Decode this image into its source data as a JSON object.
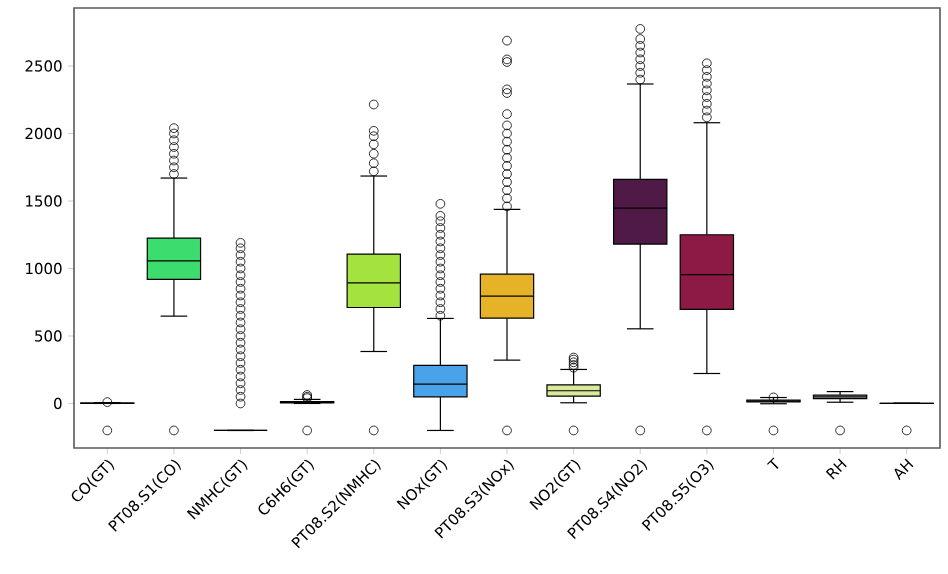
{
  "chart_data": {
    "type": "box",
    "categories": [
      "CO(GT)",
      "PT08.S1(CO)",
      "NMHC(GT)",
      "C6H6(GT)",
      "PT08.S2(NMHC)",
      "NOx(GT)",
      "PT08.S3(NOx)",
      "NO2(GT)",
      "PT08.S4(NO2)",
      "PT08.S5(O3)",
      "T",
      "RH",
      "AH"
    ],
    "colors": [
      "#9a9a9a",
      "#3ddc6e",
      "#666666",
      "#8a8a8a",
      "#a3e23f",
      "#4aa3e8",
      "#e5b228",
      "#d9ea9c",
      "#4f1a45",
      "#8c1a45",
      "#b0b0b0",
      "#c8c8c8",
      "#a0a0a0"
    ],
    "boxes": [
      {
        "low": 0,
        "q1": 1,
        "median": 2,
        "q3": 3,
        "high": 6,
        "outliers": [
          -200,
          10
        ]
      },
      {
        "low": 647,
        "q1": 919,
        "median": 1057,
        "q3": 1225,
        "high": 1670,
        "outliers": [
          -200,
          1700,
          1750,
          1800,
          1850,
          1900,
          1950,
          2000,
          2040
        ]
      },
      {
        "low": -200,
        "q1": -200,
        "median": -200,
        "q3": -200,
        "high": -200,
        "outliers": [
          0,
          50,
          100,
          150,
          200,
          250,
          300,
          350,
          400,
          450,
          500,
          550,
          600,
          650,
          700,
          750,
          800,
          850,
          900,
          950,
          1000,
          1050,
          1100,
          1150,
          1190
        ]
      },
      {
        "low": 0,
        "q1": 4,
        "median": 8,
        "q3": 14,
        "high": 30,
        "outliers": [
          -200,
          40,
          50,
          63
        ]
      },
      {
        "low": 385,
        "q1": 711,
        "median": 894,
        "q3": 1107,
        "high": 1685,
        "outliers": [
          -200,
          1720,
          1780,
          1850,
          1920,
          1980,
          2020,
          2215
        ]
      },
      {
        "low": -200,
        "q1": 49,
        "median": 143,
        "q3": 282,
        "high": 630,
        "outliers": [
          650,
          700,
          750,
          800,
          850,
          900,
          950,
          1000,
          1050,
          1100,
          1150,
          1200,
          1250,
          1300,
          1350,
          1390,
          1479
        ]
      },
      {
        "low": 321,
        "q1": 632,
        "median": 795,
        "q3": 958,
        "high": 1438,
        "outliers": [
          -200,
          1460,
          1520,
          1580,
          1640,
          1700,
          1760,
          1820,
          1880,
          1940,
          2000,
          2060,
          2144,
          2300,
          2327,
          2530,
          2549,
          2688
        ]
      },
      {
        "low": 5,
        "q1": 54,
        "median": 94,
        "q3": 138,
        "high": 252,
        "outliers": [
          -200,
          265,
          285,
          305,
          325,
          340
        ]
      },
      {
        "low": 553,
        "q1": 1181,
        "median": 1448,
        "q3": 1660,
        "high": 2367,
        "outliers": [
          -200,
          2400,
          2450,
          2500,
          2550,
          2600,
          2650,
          2700,
          2775
        ]
      },
      {
        "low": 222,
        "q1": 697,
        "median": 954,
        "q3": 1250,
        "high": 2080,
        "outliers": [
          -200,
          2120,
          2170,
          2220,
          2270,
          2320,
          2370,
          2420,
          2470,
          2520
        ]
      },
      {
        "low": -2,
        "q1": 12,
        "median": 17,
        "q3": 24,
        "high": 44,
        "outliers": [
          -200,
          45
        ]
      },
      {
        "low": 9,
        "q1": 36,
        "median": 49,
        "q3": 62,
        "high": 88,
        "outliers": [
          -200
        ]
      },
      {
        "low": 0.2,
        "q1": 0.7,
        "median": 1,
        "q3": 1.3,
        "high": 2.2,
        "outliers": [
          -200
        ]
      }
    ],
    "ylim": [
      -330,
      2930
    ],
    "yticks": [
      0,
      500,
      1000,
      1500,
      2000,
      2500
    ],
    "grid": false,
    "marker": "circle"
  }
}
